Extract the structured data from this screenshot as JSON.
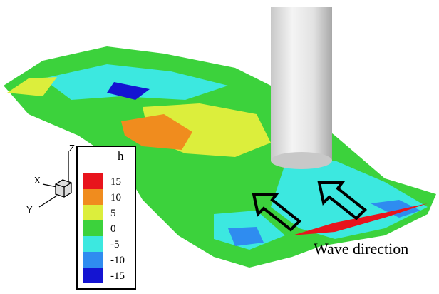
{
  "legend": {
    "title": "h",
    "levels": [
      {
        "label": "15",
        "color": "#e8141c"
      },
      {
        "label": "10",
        "color": "#f08c1e"
      },
      {
        "label": "5",
        "color": "#dcee3c"
      },
      {
        "label": "0",
        "color": "#3cd23c"
      },
      {
        "label": "-5",
        "color": "#3ce8e0"
      },
      {
        "label": "-10",
        "color": "#2f8cf0"
      },
      {
        "label": "-15",
        "color": "#1414d2"
      }
    ]
  },
  "axes": {
    "z": "Z",
    "x": "X",
    "y": "Y"
  },
  "annotation": "Wave direction"
}
